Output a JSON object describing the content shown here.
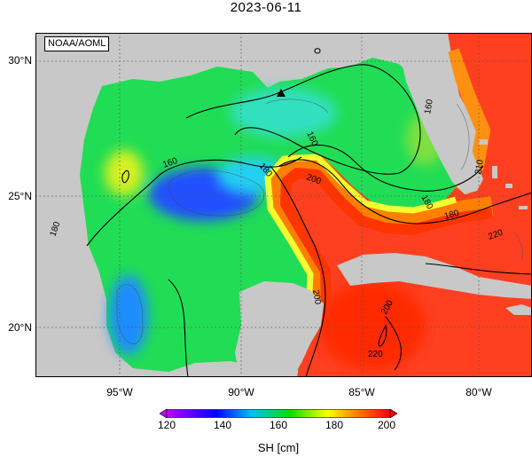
{
  "title": "2023-06-11",
  "credit": "NOAA/AOML",
  "lat_labels": [
    "30°N",
    "25°N",
    "20°N"
  ],
  "lon_labels": [
    "95°W",
    "90°W",
    "85°W",
    "80°W"
  ],
  "contour_labels": [
    "160",
    "160",
    "180",
    "200",
    "180",
    "200",
    "180",
    "220",
    "220",
    "210",
    "180",
    "160",
    "200"
  ],
  "colorbar": {
    "ticks": [
      "120",
      "140",
      "160",
      "180",
      "200"
    ],
    "label": "SH [cm]",
    "colors": [
      "#c000ff",
      "#0000ff",
      "#00bfff",
      "#00e000",
      "#ffff00",
      "#ff8000",
      "#ff0000"
    ]
  },
  "marker": "triangle-marker-icon"
}
